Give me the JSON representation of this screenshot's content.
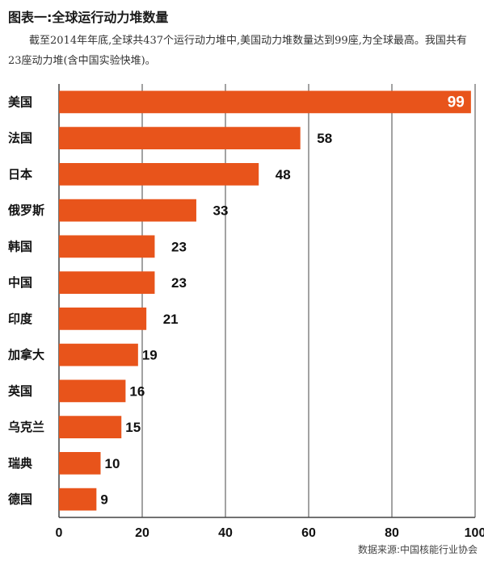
{
  "title": "图表一:全球运行动力堆数量",
  "subtitle": "截至2014年年底,全球共437个运行动力堆中,美国动力堆数量达到99座,为全球最高。我国共有23座动力堆(含中国实验快堆)。",
  "source": "数据来源:中国核能行业协会",
  "colors": {
    "bar": "#e8541b",
    "grid": "#444444"
  },
  "chart_data": {
    "type": "bar",
    "orientation": "horizontal",
    "categories": [
      "美国",
      "法国",
      "日本",
      "俄罗斯",
      "韩国",
      "中国",
      "印度",
      "加拿大",
      "英国",
      "乌克兰",
      "瑞典",
      "德国"
    ],
    "values": [
      99,
      58,
      48,
      33,
      23,
      23,
      21,
      19,
      16,
      15,
      10,
      9
    ],
    "xlim": [
      0,
      100
    ],
    "xticks": [
      "0",
      "20",
      "40",
      "60",
      "80",
      "100"
    ],
    "grid": true
  }
}
